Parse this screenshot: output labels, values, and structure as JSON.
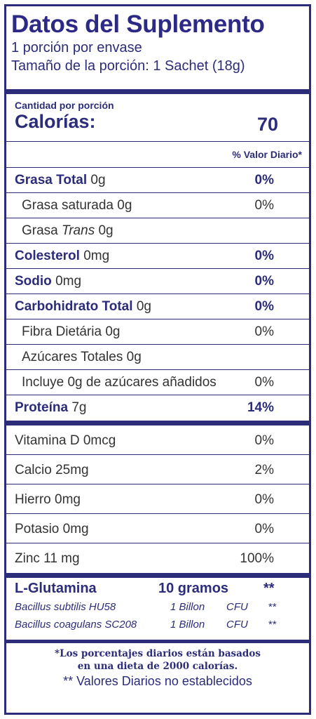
{
  "header": {
    "title": "Datos del Suplemento",
    "servings": "1 porción por envase",
    "serving_size": "Tamaño de la porción: 1 Sachet (18g)"
  },
  "calories": {
    "amount_label": "Cantidad por porción",
    "label": "Calorías:",
    "value": "70"
  },
  "dv_header": "% Valor Diario*",
  "nutrients": [
    {
      "name": "Grasa Total",
      "amount": "0g",
      "pct": "0%"
    },
    {
      "name": "Grasa saturada",
      "amount": "0g",
      "pct": "0%"
    },
    {
      "name": "Grasa",
      "name_italic": "Trans",
      "amount": "0g",
      "pct": ""
    },
    {
      "name": "Colesterol",
      "amount": "0mg",
      "pct": "0%"
    },
    {
      "name": "Sodio",
      "amount": "0mg",
      "pct": "0%"
    },
    {
      "name": "Carbohidrato Total",
      "amount": "0g",
      "pct": "0%"
    },
    {
      "name": "Fibra Dietária",
      "amount": "0g",
      "pct": "0%"
    },
    {
      "name": "Azúcares Totales",
      "amount": "0g",
      "pct": ""
    },
    {
      "name": "Incluye 0g de azúcares añadidos",
      "amount": "",
      "pct": "0%"
    },
    {
      "name": "Proteína",
      "amount": "7g",
      "pct": "14%"
    }
  ],
  "vitamins": [
    {
      "name": "Vitamina D 0mcg",
      "pct": "0%"
    },
    {
      "name": "Calcio 25mg",
      "pct": "2%"
    },
    {
      "name": "Hierro 0mg",
      "pct": "0%"
    },
    {
      "name": "Potasio 0mg",
      "pct": "0%"
    },
    {
      "name": "Zinc 11 mg",
      "pct": "100%"
    }
  ],
  "other": [
    {
      "name": "L-Glutamina",
      "amount": "10 gramos",
      "unit": "",
      "dv": "**"
    },
    {
      "name": "Bacillus subtilis HU58",
      "amount": "1 Billon",
      "unit": "CFU",
      "dv": "**"
    },
    {
      "name": "Bacillus coagulans SC208",
      "amount": "1 Billon",
      "unit": "CFU",
      "dv": "**"
    }
  ],
  "footer": {
    "line1": "*Los porcentajes diarios están basados",
    "line2": "en una dieta de 2000 calorías.",
    "line3": "** Valores Diarios no establecidos"
  }
}
